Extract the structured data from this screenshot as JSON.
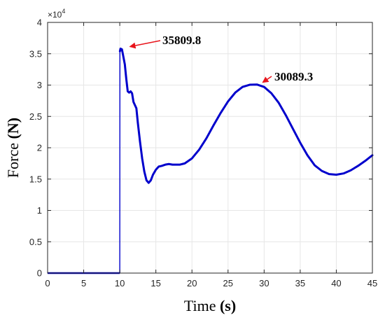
{
  "chart_data": {
    "type": "line",
    "title": "",
    "xlabel_main": "Time",
    "xlabel_unit": "(s)",
    "ylabel_main": "Force",
    "ylabel_unit": "(N)",
    "xlim": [
      0,
      45
    ],
    "ylim": [
      0,
      40000
    ],
    "x_ticks": [
      0,
      5,
      10,
      15,
      20,
      25,
      30,
      35,
      40,
      45
    ],
    "y_ticks": [
      0,
      5000,
      10000,
      15000,
      20000,
      25000,
      30000,
      35000,
      40000
    ],
    "x_tick_labels": [
      "0",
      "5",
      "10",
      "15",
      "20",
      "25",
      "30",
      "35",
      "40",
      "45"
    ],
    "y_tick_labels": [
      "0",
      "0.5",
      "1",
      "1.5",
      "2",
      "2.5",
      "3",
      "3.5",
      "4"
    ],
    "y_multiplier_base": "×10",
    "y_multiplier_exp": "4",
    "grid": true,
    "line_color": "#0000CC",
    "annotation_color": "#E8141B",
    "series": [
      {
        "x": [
          0,
          10,
          10.02,
          10.1,
          10.3,
          10.5,
          10.7,
          10.9,
          11.1,
          11.3,
          11.5,
          11.7,
          11.9,
          12.1,
          12.3,
          12.5,
          12.8,
          13.1,
          13.4,
          13.7,
          14.0,
          14.3,
          14.6,
          15.0,
          15.4,
          15.8,
          16.3,
          16.8,
          17.3,
          17.8,
          18.3,
          19,
          20,
          21,
          22,
          23,
          24,
          25,
          26,
          27,
          28,
          29,
          30,
          31,
          32,
          33,
          34,
          35,
          36,
          37,
          38,
          39,
          40,
          41,
          42,
          43,
          44,
          45
        ],
        "y": [
          0,
          0,
          35400,
          35810,
          35700,
          34500,
          33300,
          31000,
          29000,
          28800,
          29000,
          28700,
          27300,
          26800,
          26300,
          24000,
          21000,
          18300,
          16200,
          14800,
          14400,
          14800,
          15700,
          16500,
          17000,
          17100,
          17300,
          17400,
          17300,
          17300,
          17300,
          17500,
          18300,
          19700,
          21500,
          23600,
          25600,
          27400,
          28800,
          29700,
          30050,
          30089,
          29700,
          28700,
          27200,
          25200,
          23000,
          20800,
          18800,
          17200,
          16300,
          15800,
          15700,
          15900,
          16400,
          17100,
          17900,
          18800
        ]
      }
    ],
    "annotations": [
      {
        "text": "35809.8",
        "x": 10.1,
        "y": 35810
      },
      {
        "text": "30089.3",
        "x": 29,
        "y": 30089
      }
    ]
  }
}
